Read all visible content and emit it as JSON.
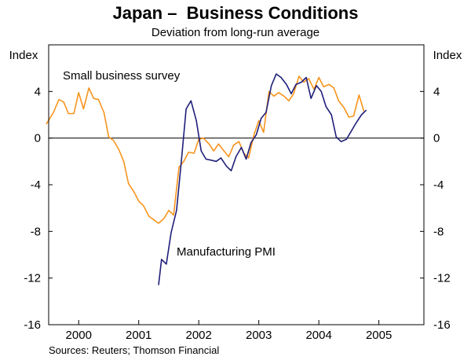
{
  "chart_data": {
    "type": "line",
    "title": "Japan –  Business Conditions",
    "subtitle": "Deviation from long-run average",
    "ylabel_left": "Index",
    "ylabel_right": "Index",
    "ylim": [
      -16,
      8
    ],
    "yticks": [
      4,
      0,
      -4,
      -8,
      -12,
      -16
    ],
    "ytick_labels": [
      "4",
      "0",
      "-4",
      "-8",
      "-12",
      "-16"
    ],
    "xlim": [
      1999.5,
      2005.75
    ],
    "year_boundaries": [
      2000,
      2001,
      2002,
      2003,
      2004,
      2005
    ],
    "xtick_labels": [
      {
        "label": "2000",
        "x": 2000
      },
      {
        "label": "2001",
        "x": 2001
      },
      {
        "label": "2002",
        "x": 2002
      },
      {
        "label": "2003",
        "x": 2003
      },
      {
        "label": "2004",
        "x": 2004
      },
      {
        "label": "2005",
        "x": 2005
      }
    ],
    "series": [
      {
        "name": "Small business survey",
        "color": "#f7941d",
        "points": [
          [
            1999.46,
            1.2
          ],
          [
            1999.58,
            2.2
          ],
          [
            1999.67,
            3.3
          ],
          [
            1999.75,
            3.1
          ],
          [
            1999.83,
            2.1
          ],
          [
            1999.92,
            2.1
          ],
          [
            2000.0,
            3.9
          ],
          [
            2000.08,
            2.5
          ],
          [
            2000.17,
            4.3
          ],
          [
            2000.25,
            3.4
          ],
          [
            2000.33,
            3.3
          ],
          [
            2000.42,
            2.2
          ],
          [
            2000.5,
            0.1
          ],
          [
            2000.58,
            -0.2
          ],
          [
            2000.67,
            -1.0
          ],
          [
            2000.75,
            -2.0
          ],
          [
            2000.83,
            -3.9
          ],
          [
            2000.92,
            -4.6
          ],
          [
            2001.0,
            -5.4
          ],
          [
            2001.08,
            -5.8
          ],
          [
            2001.17,
            -6.7
          ],
          [
            2001.25,
            -7.0
          ],
          [
            2001.33,
            -7.3
          ],
          [
            2001.42,
            -6.9
          ],
          [
            2001.5,
            -6.2
          ],
          [
            2001.58,
            -6.6
          ],
          [
            2001.67,
            -2.5
          ],
          [
            2001.75,
            -2.0
          ],
          [
            2001.83,
            -1.2
          ],
          [
            2001.92,
            -1.3
          ],
          [
            2002.0,
            -0.1
          ],
          [
            2002.08,
            0.0
          ],
          [
            2002.17,
            -0.5
          ],
          [
            2002.25,
            -1.1
          ],
          [
            2002.33,
            -0.5
          ],
          [
            2002.42,
            -1.1
          ],
          [
            2002.5,
            -1.6
          ],
          [
            2002.58,
            -0.6
          ],
          [
            2002.67,
            -0.3
          ],
          [
            2002.75,
            -1.3
          ],
          [
            2002.83,
            -1.7
          ],
          [
            2002.92,
            0.3
          ],
          [
            2003.0,
            1.5
          ],
          [
            2003.08,
            0.5
          ],
          [
            2003.17,
            4.0
          ],
          [
            2003.25,
            3.6
          ],
          [
            2003.33,
            3.9
          ],
          [
            2003.42,
            3.6
          ],
          [
            2003.5,
            3.2
          ],
          [
            2003.58,
            3.8
          ],
          [
            2003.67,
            5.3
          ],
          [
            2003.75,
            4.8
          ],
          [
            2003.83,
            5.1
          ],
          [
            2003.92,
            4.2
          ],
          [
            2004.0,
            5.2
          ],
          [
            2004.08,
            4.4
          ],
          [
            2004.17,
            4.6
          ],
          [
            2004.25,
            4.3
          ],
          [
            2004.33,
            3.2
          ],
          [
            2004.42,
            2.6
          ],
          [
            2004.5,
            1.8
          ],
          [
            2004.58,
            1.9
          ],
          [
            2004.67,
            3.7
          ],
          [
            2004.75,
            2.3
          ]
        ]
      },
      {
        "name": "Manufacturing PMI",
        "color": "#1f1f7a",
        "points": [
          [
            2001.33,
            -12.6
          ],
          [
            2001.38,
            -10.4
          ],
          [
            2001.46,
            -10.8
          ],
          [
            2001.54,
            -8.1
          ],
          [
            2001.63,
            -6.2
          ],
          [
            2001.71,
            -2.0
          ],
          [
            2001.79,
            2.5
          ],
          [
            2001.87,
            3.2
          ],
          [
            2001.96,
            1.5
          ],
          [
            2002.04,
            -1.1
          ],
          [
            2002.12,
            -1.8
          ],
          [
            2002.21,
            -1.9
          ],
          [
            2002.29,
            -2.0
          ],
          [
            2002.37,
            -1.7
          ],
          [
            2002.46,
            -2.4
          ],
          [
            2002.54,
            -2.8
          ],
          [
            2002.62,
            -1.6
          ],
          [
            2002.71,
            -0.8
          ],
          [
            2002.79,
            -1.8
          ],
          [
            2002.87,
            -0.4
          ],
          [
            2002.96,
            0.3
          ],
          [
            2003.04,
            1.7
          ],
          [
            2003.12,
            2.2
          ],
          [
            2003.21,
            4.5
          ],
          [
            2003.29,
            5.5
          ],
          [
            2003.37,
            5.2
          ],
          [
            2003.46,
            4.6
          ],
          [
            2003.54,
            3.8
          ],
          [
            2003.62,
            4.6
          ],
          [
            2003.71,
            4.8
          ],
          [
            2003.79,
            5.2
          ],
          [
            2003.87,
            3.4
          ],
          [
            2003.96,
            4.5
          ],
          [
            2004.04,
            4.0
          ],
          [
            2004.12,
            2.7
          ],
          [
            2004.21,
            2.0
          ],
          [
            2004.29,
            0.1
          ],
          [
            2004.37,
            -0.3
          ],
          [
            2004.46,
            -0.1
          ],
          [
            2004.54,
            0.6
          ],
          [
            2004.62,
            1.3
          ],
          [
            2004.71,
            2.0
          ],
          [
            2004.79,
            2.4
          ]
        ]
      }
    ],
    "annotations": [
      {
        "text": "Small business survey",
        "series": 0
      },
      {
        "text": "Manufacturing PMI",
        "series": 1
      }
    ],
    "source": "Sources: Reuters; Thomson Financial"
  }
}
